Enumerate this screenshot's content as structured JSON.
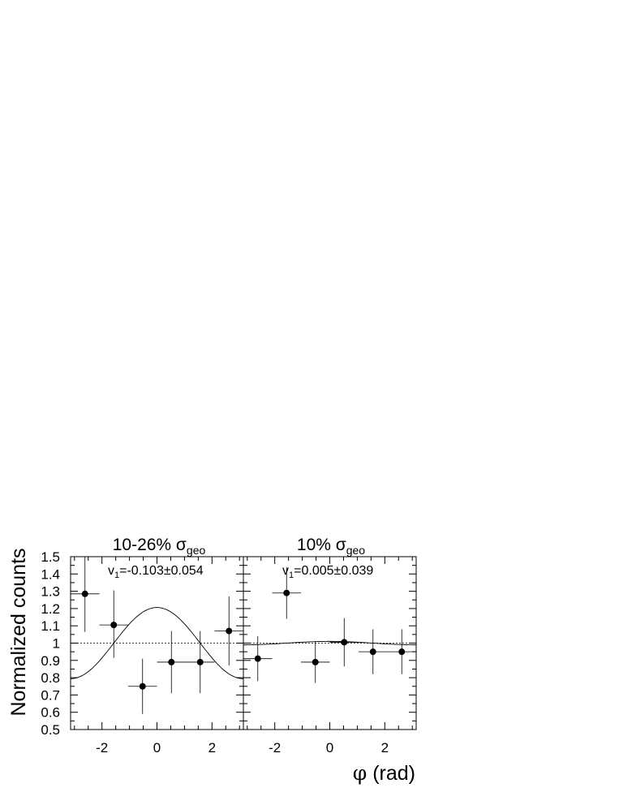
{
  "figure": {
    "ylabel": "Normalized counts",
    "xlabel_symbol": "φ",
    "xlabel_rest": " (rad)"
  },
  "chart_data": [
    {
      "type": "scatter",
      "title_main": "10-26% σ",
      "title_sub": "geo",
      "annotation_lead": "v",
      "annotation_sub": "1",
      "annotation_rest": "=-0.103±0.054",
      "xlim": [
        -3.14159,
        3.14159
      ],
      "ylim": [
        0.5,
        1.5
      ],
      "xticks": [
        -2,
        0,
        2
      ],
      "yticks": [
        0.5,
        0.6,
        0.7,
        0.8,
        0.9,
        1,
        1.1,
        1.2,
        1.3,
        1.4,
        1.5
      ],
      "x": [
        -2.618,
        -1.571,
        -0.524,
        0.524,
        1.571,
        2.618
      ],
      "xerr": 0.5236,
      "y": [
        1.285,
        1.105,
        0.75,
        0.89,
        0.89,
        1.07
      ],
      "yerr_low": [
        0.22,
        0.19,
        0.16,
        0.18,
        0.18,
        0.2
      ],
      "yerr_high": [
        0.22,
        0.2,
        0.16,
        0.18,
        0.18,
        0.2
      ],
      "fit": {
        "v1": -0.103,
        "amplitude": 0.206,
        "phase": 0
      },
      "reference_line": 1,
      "grid": false,
      "legend": "none"
    },
    {
      "type": "scatter",
      "title_main": "10% σ",
      "title_sub": "geo",
      "annotation_lead": "v",
      "annotation_sub": "1",
      "annotation_rest": "=0.005±0.039",
      "xlim": [
        -3.14159,
        3.14159
      ],
      "ylim": [
        0.5,
        1.5
      ],
      "xticks": [
        -2,
        0,
        2
      ],
      "yticks": [
        0.5,
        0.6,
        0.7,
        0.8,
        0.9,
        1,
        1.1,
        1.2,
        1.3,
        1.4,
        1.5
      ],
      "x": [
        -2.618,
        -1.571,
        -0.524,
        0.524,
        1.571,
        2.618
      ],
      "xerr": 0.5236,
      "y": [
        0.91,
        1.29,
        0.89,
        1.005,
        0.95,
        0.95
      ],
      "yerr_low": [
        0.13,
        0.15,
        0.12,
        0.14,
        0.13,
        0.13
      ],
      "yerr_high": [
        0.13,
        0.15,
        0.12,
        0.14,
        0.13,
        0.13
      ],
      "fit": {
        "v1": 0.005,
        "amplitude": 0.01,
        "phase": 0
      },
      "reference_line": 1,
      "grid": false,
      "legend": "none"
    }
  ]
}
